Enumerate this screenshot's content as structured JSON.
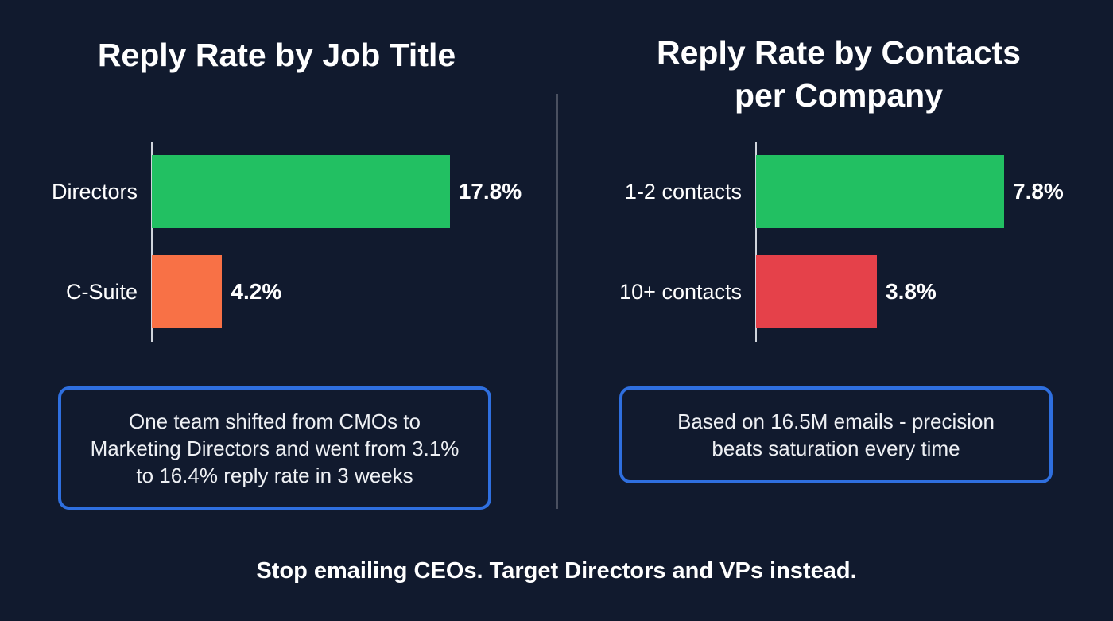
{
  "chart_data": [
    {
      "type": "bar",
      "orientation": "horizontal",
      "title": "Reply Rate by Job Title",
      "categories": [
        "Directors",
        "C-Suite"
      ],
      "values": [
        17.8,
        4.2
      ],
      "value_labels": [
        "17.8%",
        "4.2%"
      ],
      "colors": [
        "#22c062",
        "#f87146"
      ],
      "xlim": [
        0,
        19
      ],
      "note": "One team shifted from CMOs to Marketing Directors and went from 3.1% to 16.4% reply rate in 3 weeks"
    },
    {
      "type": "bar",
      "orientation": "horizontal",
      "title": "Reply Rate by Contacts per Company",
      "categories": [
        "1-2 contacts",
        "10+ contacts"
      ],
      "values": [
        7.8,
        3.8
      ],
      "value_labels": [
        "7.8%",
        "3.8%"
      ],
      "colors": [
        "#22c062",
        "#e5414a"
      ],
      "xlim": [
        0,
        10
      ],
      "note": "Based on 16.5M emails - precision beats saturation every time"
    }
  ],
  "footer": "Stop emailing CEOs. Target Directors and VPs instead.",
  "colors": {
    "background": "#111a2e",
    "note_border": "#2f6fdf"
  }
}
